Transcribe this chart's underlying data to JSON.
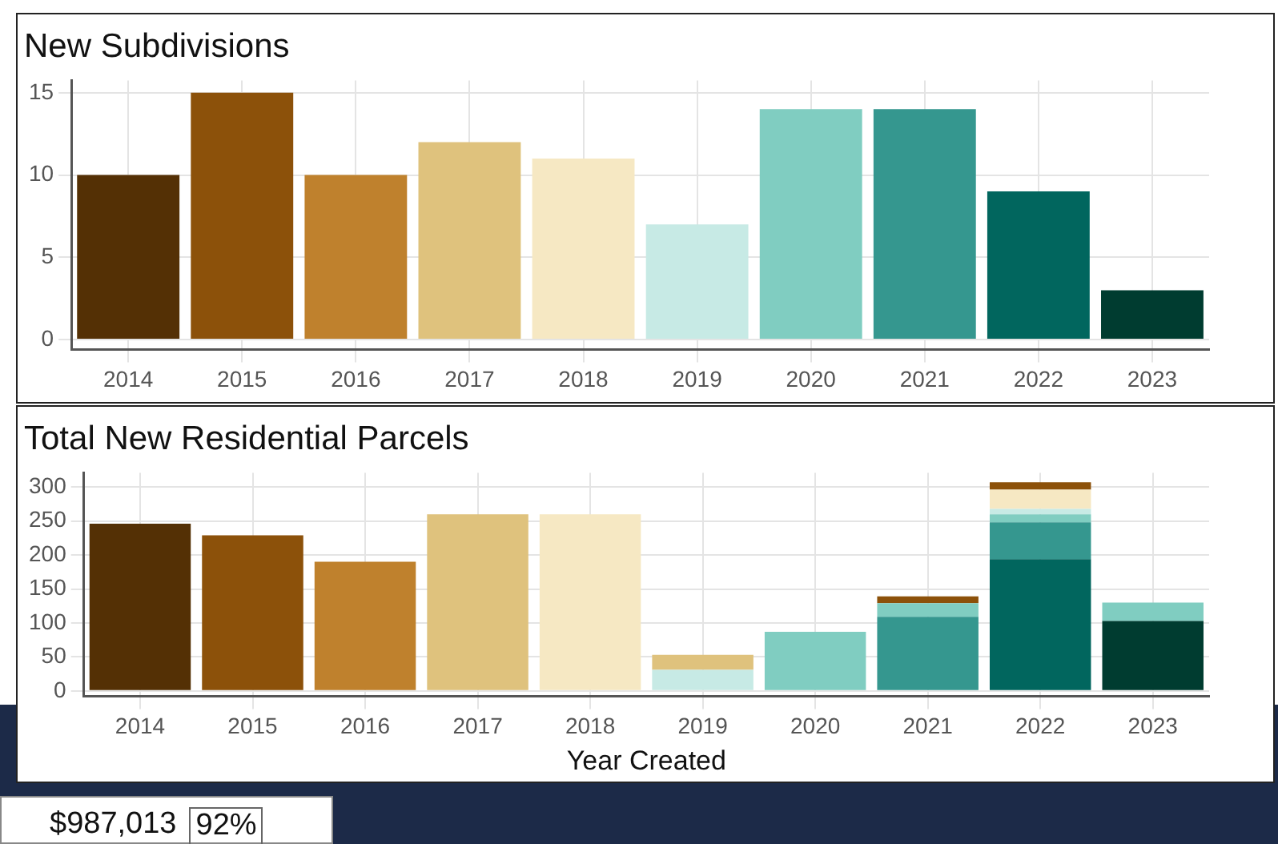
{
  "chart_data": [
    {
      "type": "bar",
      "title": "New Subdivisions",
      "categories": [
        "2014",
        "2015",
        "2016",
        "2017",
        "2018",
        "2019",
        "2020",
        "2021",
        "2022",
        "2023"
      ],
      "values": [
        10,
        15,
        10,
        12,
        11,
        7,
        14,
        14,
        9,
        3
      ],
      "colors": [
        "#543005",
        "#8c510a",
        "#bf812d",
        "#dfc27d",
        "#f6e8c3",
        "#c7eae5",
        "#80cdc1",
        "#35978f",
        "#01665e",
        "#003c30"
      ],
      "ylim": [
        -0.6,
        15.75
      ],
      "yticks": [
        0,
        5,
        10,
        15
      ],
      "grid": true,
      "legend": false
    },
    {
      "type": "bar",
      "title": "Total New Residential Parcels",
      "xlabel": "Year Created",
      "stacked": true,
      "categories": [
        "2014",
        "2015",
        "2016",
        "2017",
        "2018",
        "2019",
        "2020",
        "2021",
        "2022",
        "2023"
      ],
      "series": [
        {
          "color": "#003c30",
          "values": [
            null,
            null,
            null,
            null,
            null,
            null,
            null,
            null,
            null,
            103
          ]
        },
        {
          "color": "#01665e",
          "values": [
            null,
            null,
            null,
            null,
            null,
            null,
            null,
            null,
            194,
            null
          ]
        },
        {
          "color": "#35978f",
          "values": [
            null,
            null,
            null,
            null,
            null,
            null,
            null,
            109,
            54,
            null
          ]
        },
        {
          "color": "#80cdc1",
          "values": [
            null,
            null,
            null,
            null,
            null,
            null,
            87,
            20,
            12,
            27
          ]
        },
        {
          "color": "#c7eae5",
          "values": [
            null,
            null,
            null,
            null,
            null,
            31,
            null,
            null,
            8,
            null
          ]
        },
        {
          "color": "#f6e8c3",
          "values": [
            null,
            null,
            null,
            null,
            260,
            null,
            null,
            null,
            28,
            null
          ]
        },
        {
          "color": "#dfc27d",
          "values": [
            null,
            null,
            null,
            260,
            null,
            22,
            null,
            null,
            null,
            null
          ]
        },
        {
          "color": "#bf812d",
          "values": [
            null,
            null,
            190,
            null,
            null,
            null,
            null,
            null,
            null,
            null
          ]
        },
        {
          "color": "#8c510a",
          "values": [
            null,
            229,
            null,
            null,
            null,
            null,
            null,
            10,
            11,
            null
          ]
        },
        {
          "color": "#543005",
          "values": [
            246,
            null,
            null,
            null,
            null,
            null,
            null,
            null,
            null,
            null
          ]
        }
      ],
      "ylim": [
        -8,
        321
      ],
      "yticks": [
        0,
        50,
        100,
        150,
        200,
        250,
        300
      ],
      "grid": true,
      "legend": false
    },
    {
      "type": "other",
      "annotations": [
        "$987,013",
        "92%"
      ]
    }
  ]
}
